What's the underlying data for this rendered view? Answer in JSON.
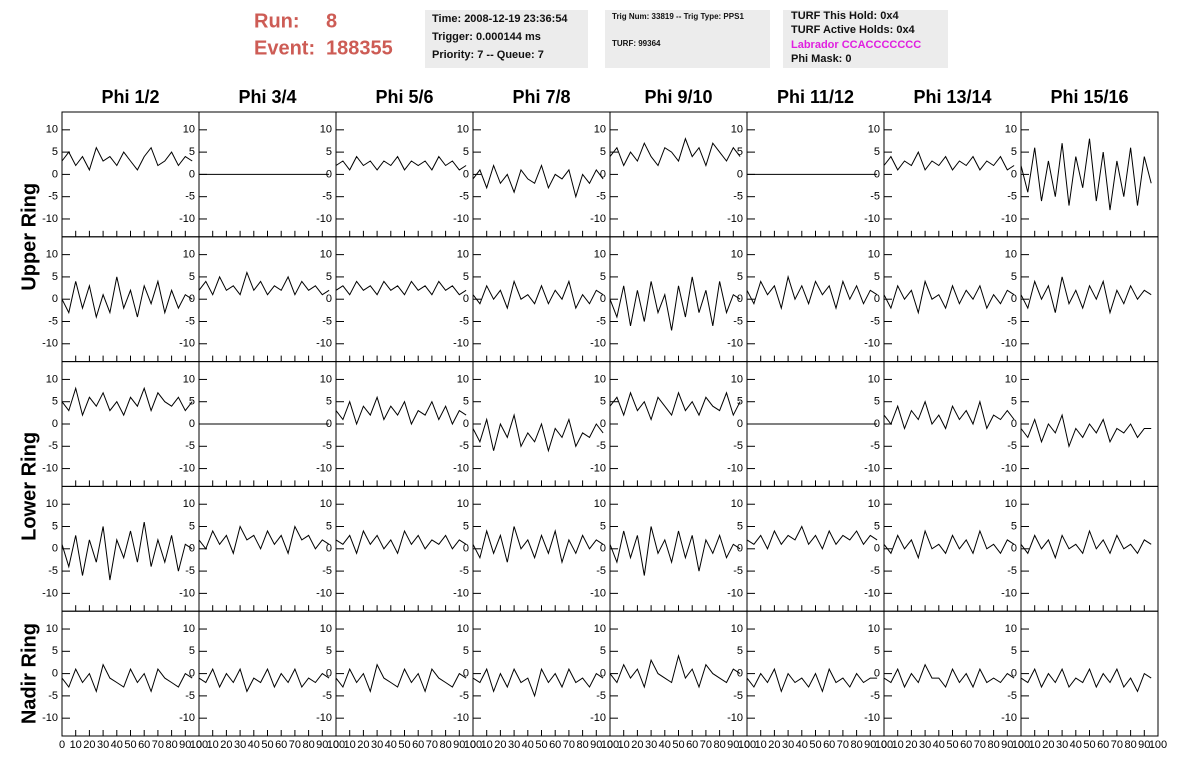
{
  "header": {
    "run_label": "Run:",
    "run": "8",
    "event_label": "Event:",
    "event": "188355"
  },
  "info_boxes": [
    [
      "Time: 2008-12-19 23:36:54",
      "Trigger: 0.000144 ms",
      "Priority: 7 -- Queue: 7"
    ],
    [
      "Trig Num: 33819 -- Trig Type: PPS1",
      "TURF: 99364"
    ],
    [
      "TURF This Hold: 0x4",
      "TURF Active Holds: 0x4",
      "Labrador CCACCCCCCC",
      "Phi Mask: 0"
    ]
  ],
  "chart_data": {
    "type": "line",
    "color": "#000000",
    "columns": [
      "Phi 1/2",
      "Phi 3/4",
      "Phi 5/6",
      "Phi 7/8",
      "Phi 9/10",
      "Phi 11/12",
      "Phi 13/14",
      "Phi 15/16"
    ],
    "x": [
      0,
      5,
      10,
      15,
      20,
      25,
      30,
      35,
      40,
      45,
      50,
      55,
      60,
      65,
      70,
      75,
      80,
      85,
      90,
      95
    ],
    "xlim": [
      0,
      100
    ],
    "xticks": [
      0,
      10,
      20,
      30,
      40,
      50,
      60,
      70,
      80,
      90,
      100
    ],
    "ylim": [
      -14,
      14
    ],
    "yticks": [
      -10,
      -5,
      0,
      5,
      10
    ],
    "rings": [
      {
        "name": "Upper Ring",
        "rows": [
          [
            [
              3,
              5,
              2,
              4,
              1,
              6,
              3,
              4,
              2,
              5,
              3,
              1,
              4,
              6,
              2,
              3,
              5,
              2,
              4,
              3
            ],
            [
              0,
              0,
              0,
              0,
              0,
              0,
              0,
              0,
              0,
              0,
              0,
              0,
              0,
              0,
              0,
              0,
              0,
              0,
              0,
              0
            ],
            [
              2,
              3,
              1,
              4,
              2,
              3,
              1,
              3,
              2,
              4,
              1,
              3,
              2,
              3,
              1,
              4,
              2,
              3,
              1,
              2
            ],
            [
              -1,
              1,
              -3,
              2,
              -2,
              0,
              -4,
              1,
              -1,
              -2,
              2,
              -3,
              0,
              -1,
              1,
              -5,
              0,
              -2,
              1,
              -1
            ],
            [
              4,
              6,
              2,
              5,
              3,
              7,
              4,
              2,
              6,
              5,
              3,
              8,
              4,
              6,
              2,
              7,
              5,
              3,
              6,
              4
            ],
            [
              0,
              0,
              0,
              0,
              0,
              0,
              0,
              0,
              0,
              0,
              0,
              0,
              0,
              0,
              0,
              0,
              0,
              0,
              0,
              0
            ],
            [
              2,
              4,
              1,
              3,
              2,
              5,
              1,
              3,
              2,
              4,
              1,
              3,
              2,
              4,
              1,
              3,
              2,
              4,
              1,
              2
            ],
            [
              2,
              -4,
              6,
              -6,
              3,
              -5,
              7,
              -7,
              4,
              -3,
              8,
              -6,
              5,
              -8,
              3,
              -5,
              6,
              -7,
              4,
              -2
            ]
          ],
          [
            [
              0,
              -3,
              4,
              -2,
              3,
              -4,
              1,
              -3,
              5,
              -2,
              2,
              -4,
              3,
              -1,
              4,
              -3,
              2,
              -2,
              1,
              0
            ],
            [
              2,
              4,
              1,
              5,
              2,
              3,
              1,
              6,
              2,
              4,
              1,
              3,
              2,
              5,
              1,
              4,
              2,
              3,
              1,
              2
            ],
            [
              2,
              3,
              1,
              4,
              2,
              3,
              1,
              4,
              2,
              3,
              1,
              4,
              2,
              3,
              1,
              4,
              2,
              3,
              1,
              2
            ],
            [
              1,
              -1,
              3,
              0,
              2,
              -2,
              4,
              0,
              1,
              -1,
              3,
              -1,
              2,
              0,
              4,
              -2,
              1,
              -1,
              2,
              1
            ],
            [
              0,
              -4,
              3,
              -6,
              2,
              -5,
              4,
              -3,
              1,
              -7,
              3,
              -4,
              5,
              -3,
              2,
              -6,
              4,
              -3,
              1,
              0
            ],
            [
              2,
              -1,
              4,
              1,
              3,
              -2,
              5,
              0,
              3,
              -1,
              4,
              1,
              3,
              -2,
              4,
              0,
              3,
              -1,
              2,
              1
            ],
            [
              1,
              -2,
              3,
              0,
              2,
              -3,
              4,
              0,
              1,
              -2,
              3,
              -1,
              2,
              0,
              3,
              -2,
              1,
              -1,
              2,
              1
            ],
            [
              1,
              -2,
              4,
              0,
              3,
              -3,
              5,
              -1,
              2,
              -2,
              3,
              0,
              4,
              -3,
              2,
              -1,
              3,
              0,
              2,
              1
            ]
          ]
        ]
      },
      {
        "name": "Lower Ring",
        "rows": [
          [
            [
              5,
              3,
              8,
              2,
              6,
              4,
              7,
              3,
              5,
              2,
              6,
              4,
              8,
              3,
              7,
              5,
              4,
              6,
              3,
              5
            ],
            [
              0,
              0,
              0,
              0,
              0,
              0,
              0,
              0,
              0,
              0,
              0,
              0,
              0,
              0,
              0,
              0,
              0,
              0,
              0,
              0
            ],
            [
              3,
              1,
              5,
              0,
              4,
              2,
              6,
              1,
              4,
              2,
              5,
              0,
              3,
              2,
              5,
              1,
              4,
              0,
              3,
              2
            ],
            [
              -1,
              -4,
              1,
              -6,
              0,
              -3,
              2,
              -5,
              -2,
              -4,
              0,
              -6,
              -1,
              -3,
              1,
              -5,
              -2,
              -3,
              0,
              -2
            ],
            [
              4,
              6,
              2,
              7,
              3,
              5,
              1,
              6,
              4,
              2,
              7,
              3,
              5,
              2,
              6,
              4,
              3,
              7,
              2,
              5
            ],
            [
              0,
              0,
              0,
              0,
              0,
              0,
              0,
              0,
              0,
              0,
              0,
              0,
              0,
              0,
              0,
              0,
              0,
              0,
              0,
              0
            ],
            [
              2,
              0,
              4,
              -1,
              3,
              1,
              5,
              0,
              2,
              -1,
              4,
              1,
              3,
              0,
              5,
              -1,
              2,
              1,
              3,
              1
            ],
            [
              -1,
              -3,
              1,
              -4,
              0,
              -2,
              2,
              -5,
              -1,
              -3,
              0,
              -2,
              1,
              -4,
              -1,
              -2,
              0,
              -3,
              -1,
              -1
            ]
          ],
          [
            [
              1,
              -4,
              3,
              -6,
              2,
              -3,
              5,
              -7,
              2,
              -2,
              4,
              -3,
              6,
              -4,
              2,
              -3,
              3,
              -5,
              1,
              0
            ],
            [
              2,
              0,
              4,
              1,
              3,
              -1,
              5,
              2,
              3,
              0,
              4,
              1,
              3,
              -1,
              5,
              2,
              3,
              0,
              2,
              1
            ],
            [
              2,
              1,
              3,
              -1,
              4,
              1,
              3,
              0,
              2,
              -1,
              4,
              1,
              3,
              0,
              2,
              1,
              3,
              0,
              2,
              1
            ],
            [
              1,
              -2,
              4,
              -1,
              3,
              -3,
              5,
              0,
              2,
              -2,
              3,
              -1,
              4,
              -3,
              2,
              -1,
              3,
              0,
              2,
              1
            ],
            [
              1,
              -3,
              4,
              -2,
              3,
              -6,
              5,
              -1,
              2,
              -3,
              4,
              -2,
              3,
              -5,
              2,
              -1,
              3,
              -2,
              1,
              0
            ],
            [
              2,
              1,
              3,
              0,
              4,
              1,
              3,
              2,
              5,
              1,
              3,
              0,
              4,
              1,
              3,
              2,
              4,
              1,
              3,
              2
            ],
            [
              1,
              -1,
              3,
              0,
              2,
              -2,
              4,
              0,
              1,
              -1,
              3,
              0,
              2,
              -1,
              4,
              0,
              1,
              -1,
              2,
              1
            ],
            [
              1,
              -1,
              3,
              0,
              2,
              -2,
              3,
              0,
              1,
              -1,
              4,
              0,
              2,
              -1,
              3,
              0,
              1,
              -1,
              2,
              1
            ]
          ]
        ]
      },
      {
        "name": "Nadir Ring",
        "rows": [
          [
            [
              -1,
              -3,
              1,
              -2,
              0,
              -4,
              2,
              -1,
              -2,
              -3,
              1,
              -2,
              0,
              -4,
              1,
              -1,
              -2,
              -3,
              0,
              -1
            ],
            [
              -1,
              -2,
              1,
              -3,
              0,
              -2,
              1,
              -4,
              -1,
              -2,
              1,
              -3,
              0,
              -2,
              1,
              -3,
              -1,
              -2,
              0,
              -1
            ],
            [
              -1,
              -3,
              1,
              -2,
              0,
              -4,
              2,
              -1,
              -2,
              -3,
              1,
              -2,
              0,
              -4,
              1,
              -1,
              -2,
              -3,
              0,
              -1
            ],
            [
              -1,
              -2,
              1,
              -4,
              0,
              -3,
              1,
              -2,
              -1,
              -5,
              1,
              -2,
              0,
              -3,
              1,
              -2,
              -1,
              -3,
              0,
              -1
            ],
            [
              0,
              -2,
              2,
              -1,
              1,
              -3,
              3,
              0,
              -1,
              -2,
              4,
              -1,
              1,
              -3,
              2,
              0,
              -1,
              -2,
              1,
              0
            ],
            [
              -1,
              -3,
              0,
              -2,
              1,
              -4,
              0,
              -2,
              -1,
              -3,
              0,
              -4,
              1,
              -2,
              -1,
              -3,
              0,
              -2,
              -1,
              -1
            ],
            [
              -1,
              -2,
              1,
              -3,
              0,
              -2,
              2,
              -1,
              -1,
              -3,
              1,
              -2,
              0,
              -3,
              1,
              -2,
              -1,
              -2,
              0,
              -1
            ],
            [
              -1,
              -2,
              1,
              -3,
              0,
              -2,
              1,
              -3,
              -1,
              -2,
              1,
              -3,
              0,
              -2,
              1,
              -3,
              -1,
              -4,
              0,
              -1
            ]
          ]
        ]
      }
    ]
  }
}
